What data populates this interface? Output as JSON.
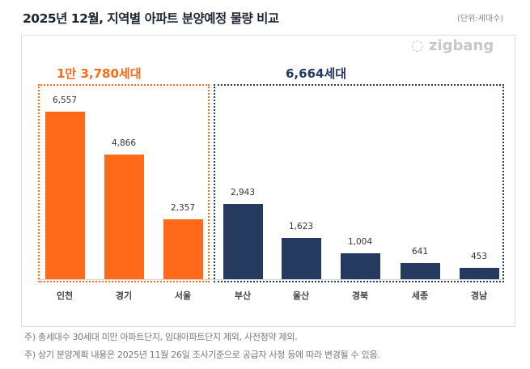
{
  "header": {
    "title": "2025년 12월, 지역별 아파트 분양예정 물량 비교",
    "unit": "(단위:세대수)",
    "logo": "zigbang"
  },
  "chart_data": {
    "type": "bar",
    "title": "2025년 12월, 지역별 아파트 분양예정 물량 비교",
    "unit": "(단위:세대수)",
    "categories": [
      "인천",
      "경기",
      "서울",
      "부산",
      "울산",
      "경북",
      "세종",
      "경남"
    ],
    "values": [
      6557,
      4866,
      2357,
      2943,
      1623,
      1004,
      641,
      453
    ],
    "value_labels": [
      "6,557",
      "4,866",
      "2,357",
      "2,943",
      "1,623",
      "1,004",
      "641",
      "453"
    ],
    "groups": [
      {
        "label": "1만 3,780세대",
        "members": [
          "인천",
          "경기",
          "서울"
        ],
        "color": "#ff6a1a"
      },
      {
        "label": "6,664세대",
        "members": [
          "부산",
          "울산",
          "경북",
          "세종",
          "경남"
        ],
        "color": "#243a5e"
      }
    ],
    "ylim": [
      0,
      6557
    ],
    "grid": false
  },
  "notes": [
    "주) 총세대수 30세대 미만 아파트단지, 임대아파트단지 제외, 사전청약 제외.",
    "주) 상기 분양계획 내용은 2025년 11월 26일 조사기준으로 공급자 사정 등에 따라 변경될 수 있음."
  ]
}
